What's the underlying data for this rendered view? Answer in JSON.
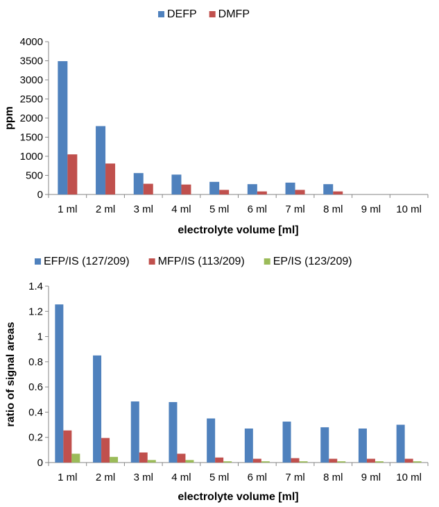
{
  "chart_data": [
    {
      "type": "bar",
      "title": "",
      "xlabel": "electrolyte volume [ml]",
      "ylabel": "ppm",
      "ylim": [
        0,
        4000
      ],
      "yticks": [
        0,
        500,
        1000,
        1500,
        2000,
        2500,
        3000,
        3500,
        4000
      ],
      "grid": false,
      "legend_position": "top-center",
      "categories": [
        "1 ml",
        "2 ml",
        "3 ml",
        "4 ml",
        "5 ml",
        "6 ml",
        "7 ml",
        "8 ml",
        "9 ml",
        "10 ml"
      ],
      "series": [
        {
          "name": "DEFP",
          "color": "#4F81BD",
          "values": [
            3490,
            1790,
            560,
            520,
            330,
            270,
            310,
            270,
            0,
            0
          ]
        },
        {
          "name": "DMFP",
          "color": "#C0504D",
          "values": [
            1050,
            810,
            280,
            260,
            120,
            80,
            120,
            80,
            0,
            0
          ]
        }
      ]
    },
    {
      "type": "bar",
      "title": "",
      "xlabel": "electrolyte volume [ml]",
      "ylabel": "ratio of signal areas",
      "ylim": [
        0,
        1.4
      ],
      "yticks": [
        "0",
        "0.2",
        "0.4",
        "0.6",
        "0.8",
        "1",
        "1.2",
        "1.4"
      ],
      "grid": false,
      "legend_position": "top-center",
      "categories": [
        "1 ml",
        "2 ml",
        "3 ml",
        "4 ml",
        "5 ml",
        "6 ml",
        "7 ml",
        "8 ml",
        "9 ml",
        "10 ml"
      ],
      "series": [
        {
          "name": "EFP/IS (127/209)",
          "color": "#4F81BD",
          "values": [
            1.255,
            0.85,
            0.485,
            0.48,
            0.35,
            0.27,
            0.325,
            0.28,
            0.27,
            0.3
          ]
        },
        {
          "name": "MFP/IS (113/209)",
          "color": "#C0504D",
          "values": [
            0.255,
            0.195,
            0.08,
            0.07,
            0.04,
            0.03,
            0.035,
            0.03,
            0.03,
            0.03
          ]
        },
        {
          "name": "EP/IS (123/209)",
          "color": "#9BBB59",
          "values": [
            0.07,
            0.045,
            0.02,
            0.02,
            0.01,
            0.01,
            0.01,
            0.01,
            0.01,
            0.01
          ]
        }
      ]
    }
  ]
}
